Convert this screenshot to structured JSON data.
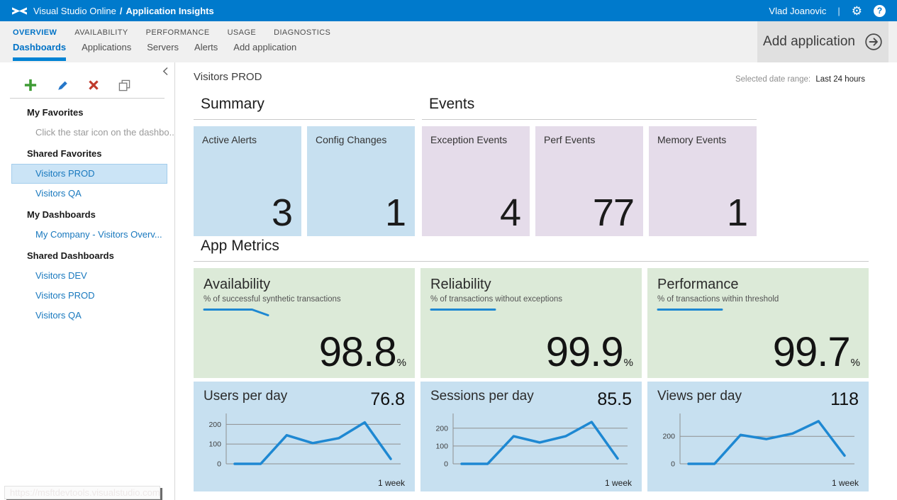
{
  "topbar": {
    "brand": "Visual Studio Online",
    "separator": "/",
    "section": "Application Insights",
    "user": "Vlad Joanovic",
    "pipe": "|"
  },
  "nav": {
    "tabs": [
      {
        "label": "OVERVIEW",
        "active": true
      },
      {
        "label": "AVAILABILITY",
        "active": false
      },
      {
        "label": "PERFORMANCE",
        "active": false
      },
      {
        "label": "USAGE",
        "active": false
      },
      {
        "label": "DIAGNOSTICS",
        "active": false
      }
    ],
    "subtabs": [
      {
        "label": "Dashboards",
        "active": true
      },
      {
        "label": "Applications",
        "active": false
      },
      {
        "label": "Servers",
        "active": false
      },
      {
        "label": "Alerts",
        "active": false
      },
      {
        "label": "Add application",
        "active": false
      }
    ],
    "add_application_label": "Add application"
  },
  "sidebar": {
    "toolbar": {
      "add": "add-dashboard",
      "edit": "edit-dashboard",
      "delete": "delete-dashboard",
      "copy": "copy-dashboard"
    },
    "groups": [
      {
        "header": "My Favorites",
        "items": [
          {
            "label": "Click the star icon on the dashbo...",
            "type": "note"
          }
        ]
      },
      {
        "header": "Shared Favorites",
        "items": [
          {
            "label": "Visitors PROD",
            "selected": true
          },
          {
            "label": "Visitors QA",
            "selected": false
          }
        ]
      },
      {
        "header": "My Dashboards",
        "items": [
          {
            "label": "My Company - Visitors Overv...",
            "selected": false
          }
        ]
      },
      {
        "header": "Shared Dashboards",
        "items": [
          {
            "label": "Visitors DEV",
            "selected": false
          },
          {
            "label": "Visitors PROD",
            "selected": false
          },
          {
            "label": "Visitors QA",
            "selected": false
          }
        ]
      }
    ],
    "url_preview": "https://msftdevtools.visualstudio.com/"
  },
  "main": {
    "title": "Visitors PROD",
    "date_range_label": "Selected date range:",
    "date_range_value": "Last 24 hours",
    "sections": {
      "summary": "Summary",
      "events": "Events",
      "app_metrics": "App Metrics"
    },
    "summary_tiles": [
      {
        "label": "Active Alerts",
        "value": "3"
      },
      {
        "label": "Config Changes",
        "value": "1"
      }
    ],
    "event_tiles": [
      {
        "label": "Exception Events",
        "value": "4"
      },
      {
        "label": "Perf Events",
        "value": "77"
      },
      {
        "label": "Memory Events",
        "value": "1"
      }
    ],
    "metric_tiles": [
      {
        "title": "Availability",
        "subtitle": "% of successful synthetic transactions",
        "value": "98.8",
        "unit": "%",
        "trend": [
          99,
          99,
          99,
          99,
          98.2
        ]
      },
      {
        "title": "Reliability",
        "subtitle": "% of transactions without exceptions",
        "value": "99.9",
        "unit": "%",
        "trend": [
          99.9,
          99.9,
          99.9,
          99.9,
          99.9
        ]
      },
      {
        "title": "Performance",
        "subtitle": "% of transactions within threshold",
        "value": "99.7",
        "unit": "%",
        "trend": [
          99.7,
          99.7,
          99.7,
          99.7,
          99.7
        ]
      }
    ]
  },
  "chart_data": [
    {
      "type": "line",
      "title": "Users per day",
      "current_value": "76.8",
      "x_label": "1 week",
      "y_ticks": [
        0,
        100,
        200
      ],
      "ylim": [
        0,
        230
      ],
      "values": [
        0,
        0,
        145,
        105,
        130,
        210,
        25
      ]
    },
    {
      "type": "line",
      "title": "Sessions per day",
      "current_value": "85.5",
      "x_label": "1 week",
      "y_ticks": [
        0,
        100,
        200
      ],
      "ylim": [
        0,
        255
      ],
      "values": [
        0,
        0,
        155,
        120,
        155,
        235,
        30
      ]
    },
    {
      "type": "line",
      "title": "Views per day",
      "current_value": "118",
      "x_label": "1 week",
      "y_ticks": [
        0,
        200
      ],
      "ylim": [
        0,
        330
      ],
      "values": [
        0,
        0,
        210,
        180,
        220,
        310,
        60
      ]
    }
  ],
  "colors": {
    "topbar": "#007acc",
    "accent": "#0072c6",
    "tile_blue": "#c7e0f0",
    "tile_purple": "#e5dcea",
    "tile_green": "#dcead8",
    "chart_line": "#1e88d2",
    "gridline": "#8f8f8f"
  }
}
